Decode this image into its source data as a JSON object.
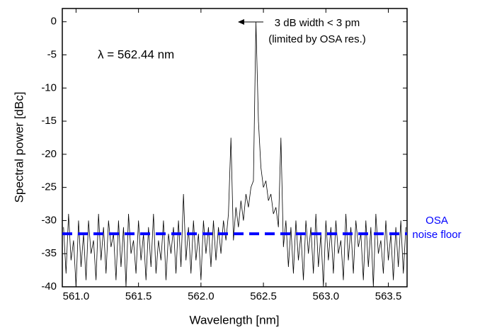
{
  "chart_data": {
    "type": "line",
    "xlabel": "Wavelength [nm]",
    "ylabel": "Spectral power [dBc]",
    "annotations": [
      "λ = 562.44 nm",
      "3 dB width < 3 pm",
      "(limited by OSA res.)"
    ],
    "noise_floor": -32,
    "noise_floor_label": [
      "OSA",
      "noise floor"
    ],
    "noise_floor_color": "#0000ff",
    "color": "#000000",
    "xlim": [
      560.89,
      563.65
    ],
    "ylim": [
      -40,
      2
    ],
    "xticks": [
      {
        "value": 561.0,
        "label": "561.0"
      },
      {
        "value": 561.5,
        "label": "561.5"
      },
      {
        "value": 562.0,
        "label": "562.0"
      },
      {
        "value": 562.5,
        "label": "562.5"
      },
      {
        "value": 563.0,
        "label": "563.0"
      },
      {
        "value": 563.5,
        "label": "563.5"
      }
    ],
    "yticks": [
      0,
      -5,
      -10,
      -15,
      -20,
      -25,
      -30,
      -35,
      -40
    ],
    "x": [
      560.9,
      560.92,
      560.94,
      560.96,
      560.98,
      561.0,
      561.02,
      561.04,
      561.06,
      561.08,
      561.1,
      561.12,
      561.14,
      561.16,
      561.18,
      561.2,
      561.22,
      561.24,
      561.26,
      561.28,
      561.3,
      561.32,
      561.34,
      561.36,
      561.38,
      561.4,
      561.42,
      561.44,
      561.46,
      561.48,
      561.5,
      561.52,
      561.54,
      561.56,
      561.58,
      561.6,
      561.62,
      561.64,
      561.66,
      561.68,
      561.7,
      561.72,
      561.74,
      561.76,
      561.78,
      561.8,
      561.82,
      561.84,
      561.86,
      561.88,
      561.9,
      561.92,
      561.94,
      561.96,
      561.98,
      562.0,
      562.02,
      562.04,
      562.06,
      562.08,
      562.1,
      562.12,
      562.14,
      562.16,
      562.18,
      562.2,
      562.22,
      562.24,
      562.26,
      562.28,
      562.3,
      562.32,
      562.34,
      562.36,
      562.38,
      562.4,
      562.42,
      562.44,
      562.46,
      562.48,
      562.5,
      562.52,
      562.54,
      562.56,
      562.58,
      562.6,
      562.62,
      562.64,
      562.66,
      562.68,
      562.7,
      562.72,
      562.74,
      562.76,
      562.78,
      562.8,
      562.82,
      562.84,
      562.86,
      562.88,
      562.9,
      562.92,
      562.94,
      562.96,
      562.98,
      563.0,
      563.02,
      563.04,
      563.06,
      563.08,
      563.1,
      563.12,
      563.14,
      563.16,
      563.18,
      563.2,
      563.22,
      563.24,
      563.26,
      563.28,
      563.3,
      563.32,
      563.34,
      563.36,
      563.38,
      563.4,
      563.42,
      563.44,
      563.46,
      563.48,
      563.5,
      563.52,
      563.54,
      563.56,
      563.58,
      563.6,
      563.62,
      563.64
    ],
    "values": [
      -31,
      -38,
      -29,
      -36,
      -33,
      -40,
      -30,
      -37,
      -32,
      -39,
      -30,
      -35,
      -33,
      -39,
      -29,
      -36,
      -31,
      -38,
      -30,
      -34,
      -32,
      -39,
      -30,
      -37,
      -31,
      -40,
      -29,
      -35,
      -33,
      -38,
      -30,
      -36,
      -32,
      -39,
      -31,
      -37,
      -29,
      -38,
      -33,
      -36,
      -30,
      -39,
      -32,
      -35,
      -31,
      -38,
      -30,
      -37,
      -26,
      -36,
      -31,
      -38,
      -30,
      -36,
      -32,
      -39,
      -30,
      -35,
      -31,
      -37,
      -30,
      -36,
      -31,
      -35,
      -30,
      -33,
      -29,
      -17.5,
      -33,
      -28,
      -31,
      -27,
      -30,
      -26,
      -28,
      -25,
      -24,
      0,
      -15,
      -22,
      -25,
      -24,
      -27,
      -26,
      -29,
      -28,
      -31,
      -17.5,
      -34,
      -30,
      -37,
      -31,
      -38,
      -30,
      -36,
      -32,
      -39,
      -30,
      -35,
      -31,
      -38,
      -29,
      -37,
      -32,
      -40,
      -30,
      -36,
      -31,
      -38,
      -30,
      -35,
      -33,
      -39,
      -29,
      -36,
      -31,
      -38,
      -30,
      -34,
      -32,
      -39,
      -30,
      -37,
      -31,
      -40,
      -29,
      -35,
      -33,
      -38,
      -30,
      -36,
      -32,
      -39,
      -31,
      -37,
      -30,
      -38,
      -31
    ]
  }
}
